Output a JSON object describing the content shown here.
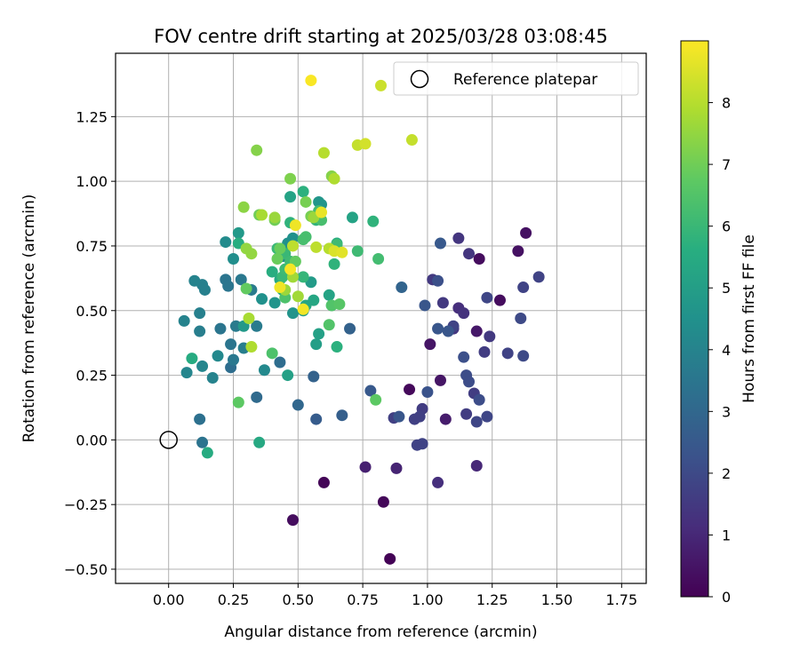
{
  "chart_data": {
    "type": "scatter",
    "title": "FOV centre drift starting at 2025/03/28 03:08:45",
    "xlabel": "Angular distance from reference (arcmin)",
    "ylabel": "Rotation from reference (arcmin)",
    "xlim": [
      -0.205,
      1.845
    ],
    "ylim": [
      -0.555,
      1.495
    ],
    "xticks": [
      0.0,
      0.25,
      0.5,
      0.75,
      1.0,
      1.25,
      1.5,
      1.75
    ],
    "xtick_labels": [
      "0.00",
      "0.25",
      "0.50",
      "0.75",
      "1.00",
      "1.25",
      "1.50",
      "1.75"
    ],
    "yticks": [
      -0.5,
      -0.25,
      0.0,
      0.25,
      0.5,
      0.75,
      1.0,
      1.25
    ],
    "ytick_labels": [
      "−0.50",
      "−0.25",
      "0.00",
      "0.25",
      "0.50",
      "0.75",
      "1.00",
      "1.25"
    ],
    "grid": true,
    "colormap": "viridis",
    "colorbar": {
      "label": "Hours from first FF file",
      "range": [
        0,
        9
      ],
      "ticks": [
        0,
        1,
        2,
        3,
        4,
        5,
        6,
        7,
        8
      ],
      "tick_labels": [
        "0",
        "1",
        "2",
        "3",
        "4",
        "5",
        "6",
        "7",
        "8"
      ]
    },
    "legend": {
      "position": "top-right",
      "entries": [
        "Reference platepar"
      ]
    },
    "reference_point": [
      0.0,
      0.0
    ],
    "points": [
      [
        0.855,
        -0.46,
        0.05
      ],
      [
        0.6,
        -0.165,
        0.1
      ],
      [
        0.83,
        -0.24,
        0.15
      ],
      [
        0.48,
        -0.31,
        0.3
      ],
      [
        0.93,
        0.195,
        0.2
      ],
      [
        1.2,
        0.7,
        0.3
      ],
      [
        1.28,
        0.54,
        0.3
      ],
      [
        1.38,
        0.8,
        0.4
      ],
      [
        1.35,
        0.73,
        0.4
      ],
      [
        1.01,
        0.37,
        0.5
      ],
      [
        1.05,
        0.23,
        0.5
      ],
      [
        1.19,
        0.42,
        0.6
      ],
      [
        1.07,
        0.08,
        0.7
      ],
      [
        0.76,
        -0.105,
        0.8
      ],
      [
        0.88,
        -0.11,
        0.9
      ],
      [
        1.19,
        -0.1,
        1.0
      ],
      [
        1.04,
        -0.165,
        1.2
      ],
      [
        1.12,
        0.51,
        1.2
      ],
      [
        1.14,
        0.49,
        1.3
      ],
      [
        1.1,
        0.43,
        1.4
      ],
      [
        1.12,
        0.78,
        1.4
      ],
      [
        1.16,
        0.72,
        1.4
      ],
      [
        1.02,
        0.62,
        1.5
      ],
      [
        1.06,
        0.53,
        1.5
      ],
      [
        1.24,
        0.4,
        1.5
      ],
      [
        1.22,
        0.34,
        1.6
      ],
      [
        1.18,
        0.18,
        1.6
      ],
      [
        1.15,
        0.1,
        1.6
      ],
      [
        0.98,
        0.12,
        1.6
      ],
      [
        0.97,
        0.09,
        1.7
      ],
      [
        0.95,
        0.08,
        1.7
      ],
      [
        0.87,
        0.085,
        1.7
      ],
      [
        0.96,
        -0.02,
        1.8
      ],
      [
        0.98,
        -0.015,
        1.8
      ],
      [
        1.1,
        0.44,
        1.8
      ],
      [
        1.31,
        0.335,
        1.8
      ],
      [
        1.37,
        0.59,
        1.8
      ],
      [
        1.43,
        0.63,
        1.8
      ],
      [
        1.23,
        0.55,
        1.9
      ],
      [
        1.19,
        0.07,
        1.9
      ],
      [
        1.23,
        0.09,
        1.9
      ],
      [
        1.36,
        0.47,
        2.0
      ],
      [
        1.37,
        0.325,
        2.0
      ],
      [
        1.15,
        0.25,
        2.1
      ],
      [
        1.2,
        0.155,
        2.1
      ],
      [
        1.16,
        0.225,
        2.1
      ],
      [
        1.14,
        0.32,
        2.2
      ],
      [
        1.04,
        0.615,
        2.2
      ],
      [
        1.0,
        0.185,
        2.3
      ],
      [
        0.99,
        0.52,
        2.4
      ],
      [
        1.04,
        0.43,
        2.4
      ],
      [
        1.08,
        0.42,
        2.4
      ],
      [
        0.89,
        0.09,
        2.4
      ],
      [
        0.78,
        0.19,
        2.5
      ],
      [
        1.05,
        0.76,
        2.5
      ],
      [
        0.57,
        0.08,
        2.6
      ],
      [
        0.67,
        0.095,
        2.7
      ],
      [
        0.56,
        0.245,
        2.8
      ],
      [
        0.7,
        0.43,
        2.8
      ],
      [
        0.9,
        0.59,
        2.9
      ],
      [
        0.5,
        0.135,
        3.0
      ],
      [
        0.34,
        0.165,
        3.1
      ],
      [
        0.43,
        0.3,
        3.2
      ],
      [
        0.24,
        0.28,
        3.2
      ],
      [
        0.12,
        0.08,
        3.3
      ],
      [
        0.13,
        -0.01,
        3.4
      ],
      [
        0.2,
        0.43,
        3.5
      ],
      [
        0.22,
        0.62,
        3.5
      ],
      [
        0.23,
        0.595,
        3.5
      ],
      [
        0.24,
        0.37,
        3.5
      ],
      [
        0.25,
        0.31,
        3.6
      ],
      [
        0.28,
        0.62,
        3.6
      ],
      [
        0.32,
        0.58,
        3.7
      ],
      [
        0.34,
        0.44,
        3.7
      ],
      [
        0.26,
        0.44,
        3.7
      ],
      [
        0.29,
        0.355,
        3.8
      ],
      [
        0.12,
        0.42,
        3.8
      ],
      [
        0.12,
        0.49,
        3.9
      ],
      [
        0.13,
        0.6,
        3.9
      ],
      [
        0.14,
        0.58,
        3.9
      ],
      [
        0.1,
        0.615,
        4.0
      ],
      [
        0.06,
        0.46,
        4.0
      ],
      [
        0.17,
        0.24,
        4.0
      ],
      [
        0.13,
        0.285,
        4.1
      ],
      [
        0.07,
        0.26,
        4.1
      ],
      [
        0.19,
        0.325,
        4.2
      ],
      [
        0.37,
        0.27,
        4.2
      ],
      [
        0.44,
        0.71,
        4.3
      ],
      [
        0.22,
        0.765,
        4.3
      ],
      [
        0.25,
        0.7,
        4.4
      ],
      [
        0.46,
        0.76,
        4.5
      ],
      [
        0.48,
        0.78,
        4.5
      ],
      [
        0.36,
        0.545,
        4.5
      ],
      [
        0.41,
        0.53,
        4.6
      ],
      [
        0.48,
        0.49,
        4.6
      ],
      [
        0.59,
        0.91,
        4.6
      ],
      [
        0.58,
        0.92,
        4.7
      ],
      [
        0.27,
        0.8,
        4.8
      ],
      [
        0.29,
        0.44,
        4.8
      ],
      [
        0.52,
        0.5,
        4.9
      ],
      [
        0.55,
        0.61,
        4.9
      ],
      [
        0.57,
        0.37,
        5.0
      ],
      [
        0.58,
        0.41,
        5.1
      ],
      [
        0.46,
        0.25,
        5.1
      ],
      [
        0.47,
        0.94,
        5.2
      ],
      [
        0.71,
        0.86,
        5.2
      ],
      [
        0.62,
        0.56,
        5.2
      ],
      [
        0.53,
        0.52,
        5.3
      ],
      [
        0.56,
        0.54,
        5.3
      ],
      [
        0.43,
        0.62,
        5.4
      ],
      [
        0.44,
        0.58,
        5.4
      ],
      [
        0.35,
        -0.01,
        5.4
      ],
      [
        0.15,
        -0.05,
        5.5
      ],
      [
        0.09,
        0.315,
        5.5
      ],
      [
        0.27,
        0.76,
        5.6
      ],
      [
        0.4,
        0.65,
        5.6
      ],
      [
        0.65,
        0.76,
        5.6
      ],
      [
        0.63,
        0.52,
        5.7
      ],
      [
        0.65,
        0.36,
        5.7
      ],
      [
        0.52,
        0.96,
        5.7
      ],
      [
        0.57,
        0.85,
        5.8
      ],
      [
        0.79,
        0.845,
        5.8
      ],
      [
        0.64,
        0.68,
        5.8
      ],
      [
        0.47,
        0.84,
        5.8
      ],
      [
        0.52,
        0.63,
        5.9
      ],
      [
        0.45,
        0.72,
        6.0
      ],
      [
        0.44,
        0.63,
        6.0
      ],
      [
        0.42,
        0.74,
        6.0
      ],
      [
        0.47,
        0.69,
        6.1
      ],
      [
        0.45,
        0.66,
        6.1
      ],
      [
        0.65,
        0.755,
        6.1
      ],
      [
        0.73,
        0.73,
        6.1
      ],
      [
        0.81,
        0.7,
        6.2
      ],
      [
        0.58,
        0.885,
        6.2
      ],
      [
        0.52,
        0.775,
        6.3
      ],
      [
        0.53,
        0.785,
        6.3
      ],
      [
        0.59,
        0.85,
        6.3
      ],
      [
        0.45,
        0.55,
        6.4
      ],
      [
        0.4,
        0.335,
        6.4
      ],
      [
        0.62,
        0.445,
        6.5
      ],
      [
        0.63,
        0.52,
        6.5
      ],
      [
        0.66,
        0.525,
        6.6
      ],
      [
        0.27,
        0.145,
        6.7
      ],
      [
        0.8,
        0.155,
        6.7
      ],
      [
        0.3,
        0.585,
        6.8
      ],
      [
        0.49,
        0.69,
        6.8
      ],
      [
        0.42,
        0.7,
        6.9
      ],
      [
        0.43,
        0.74,
        6.9
      ],
      [
        0.35,
        0.87,
        7.0
      ],
      [
        0.41,
        0.85,
        7.0
      ],
      [
        0.53,
        0.92,
        7.1
      ],
      [
        0.55,
        0.865,
        7.1
      ],
      [
        0.47,
        1.01,
        7.2
      ],
      [
        0.63,
        1.02,
        7.3
      ],
      [
        0.34,
        1.12,
        7.3
      ],
      [
        0.29,
        0.9,
        7.4
      ],
      [
        0.3,
        0.74,
        7.5
      ],
      [
        0.32,
        0.72,
        7.5
      ],
      [
        0.41,
        0.86,
        7.6
      ],
      [
        0.56,
        0.86,
        7.6
      ],
      [
        0.45,
        0.58,
        7.6
      ],
      [
        0.48,
        0.63,
        7.7
      ],
      [
        0.5,
        0.555,
        7.7
      ],
      [
        0.36,
        0.87,
        7.8
      ],
      [
        0.31,
        0.47,
        7.8
      ],
      [
        0.32,
        0.36,
        7.9
      ],
      [
        0.64,
        1.01,
        7.9
      ],
      [
        0.6,
        1.11,
        8.0
      ],
      [
        0.62,
        0.74,
        8.0
      ],
      [
        0.48,
        0.75,
        8.1
      ],
      [
        0.57,
        0.745,
        8.1
      ],
      [
        0.73,
        1.14,
        8.2
      ],
      [
        0.94,
        1.16,
        8.2
      ],
      [
        0.82,
        1.37,
        8.3
      ],
      [
        0.76,
        1.145,
        8.4
      ],
      [
        0.64,
        0.73,
        8.5
      ],
      [
        0.67,
        0.725,
        8.6
      ],
      [
        0.59,
        0.88,
        8.7
      ],
      [
        0.49,
        0.83,
        8.8
      ],
      [
        0.43,
        0.59,
        8.8
      ],
      [
        0.52,
        0.505,
        8.85
      ],
      [
        0.47,
        0.66,
        8.9
      ],
      [
        0.55,
        1.39,
        8.95
      ]
    ]
  }
}
